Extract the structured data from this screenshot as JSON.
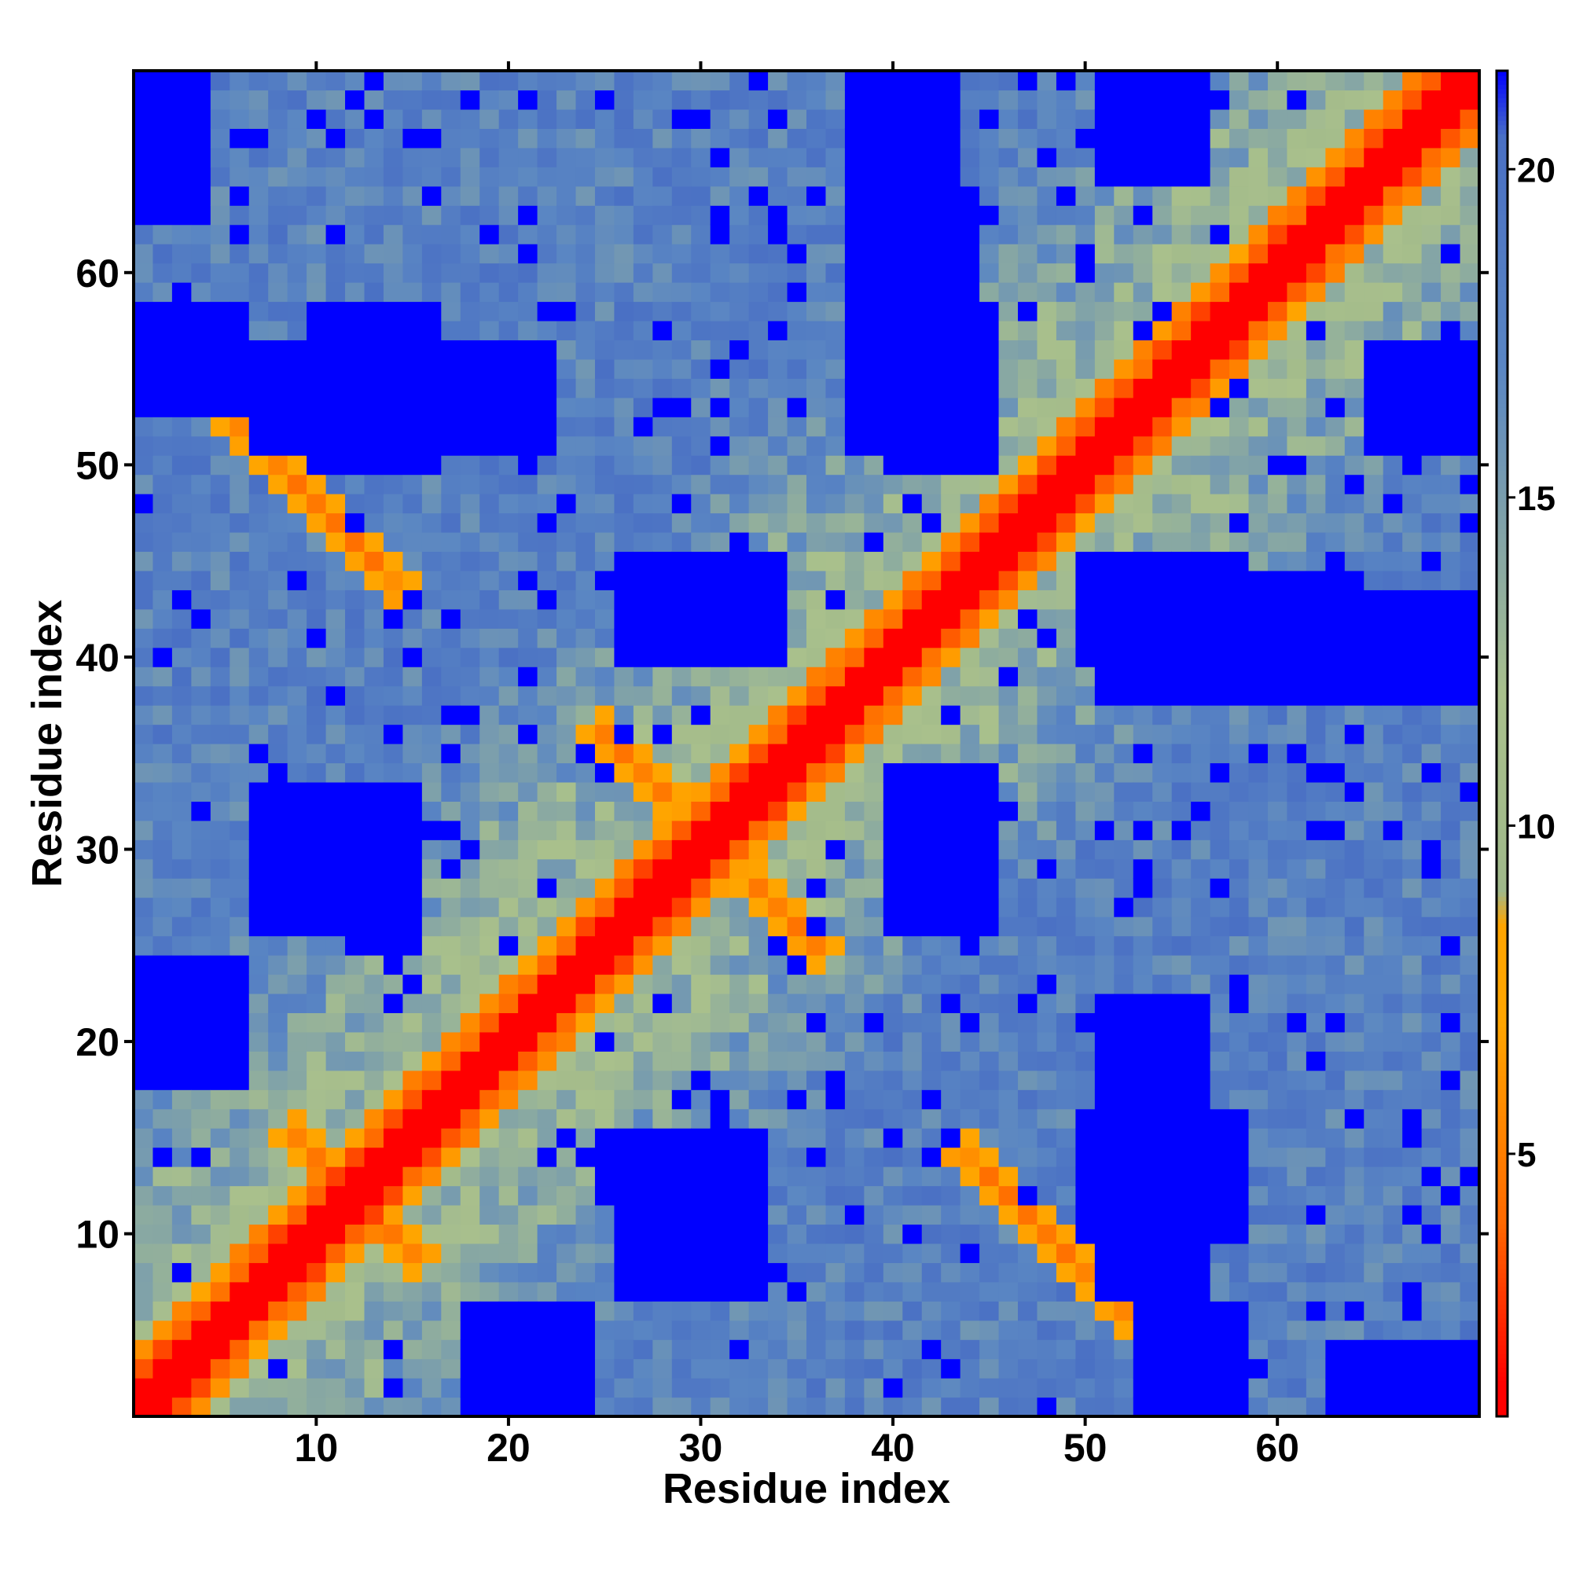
{
  "chart_data": {
    "type": "heatmap",
    "title": "",
    "xlabel": "Residue index",
    "ylabel": "Residue index",
    "n": 70,
    "xlim": [
      1,
      70
    ],
    "ylim": [
      1,
      70
    ],
    "x_ticks": [
      10,
      20,
      30,
      40,
      50,
      60
    ],
    "y_ticks": [
      10,
      20,
      30,
      40,
      50,
      60
    ],
    "colorbar": {
      "ticks": [
        5,
        10,
        15,
        20
      ],
      "range": [
        1,
        21.5
      ],
      "stops": [
        {
          "value": 1.5,
          "color": "#ff0000"
        },
        {
          "value": 4,
          "color": "#ff6a00"
        },
        {
          "value": 7,
          "color": "#ffa500"
        },
        {
          "value": 8.5,
          "color": "#ffa500"
        },
        {
          "value": 9,
          "color": "#9fb88a"
        },
        {
          "value": 12,
          "color": "#a9c08c"
        },
        {
          "value": 17,
          "color": "#5a86c3"
        },
        {
          "value": 20.5,
          "color": "#4a70c4"
        },
        {
          "value": 21.5,
          "color": "#0000ff"
        }
      ]
    },
    "values_description": "Pairwise distance map: symmetric, zero-distance (red) diagonal with orange near-contact bands; blue = distances >= 21.",
    "contact_bands": [
      {
        "i_start": 5,
        "j_start": 53,
        "length": 10,
        "orientation": "anti"
      },
      {
        "i_start": 25,
        "j_start": 36,
        "length": 10,
        "orientation": "anti"
      },
      {
        "i_start": 9,
        "j_start": 15,
        "length": 8,
        "orientation": "anti"
      }
    ],
    "far_blocks": [
      {
        "i": [
          1,
          6
        ],
        "j": [
          18,
          24
        ]
      },
      {
        "i": [
          1,
          6
        ],
        "j": [
          53,
          58
        ]
      },
      {
        "i": [
          10,
          16
        ],
        "j": [
          50,
          58
        ]
      },
      {
        "i": [
          18,
          23
        ],
        "j": [
          1,
          5
        ]
      },
      {
        "i": [
          12,
          15
        ],
        "j": [
          25,
          33
        ]
      },
      {
        "i": [
          28,
          33
        ],
        "j": [
          40,
          44
        ]
      },
      {
        "i": [
          40,
          45
        ],
        "j": [
          26,
          34
        ]
      },
      {
        "i": [
          40,
          45
        ],
        "j": [
          50,
          56
        ]
      },
      {
        "i": [
          51,
          56
        ],
        "j": [
          7,
          22
        ]
      },
      {
        "i": [
          51,
          58
        ],
        "j": [
          38,
          45
        ]
      },
      {
        "i": [
          63,
          70
        ],
        "j": [
          1,
          4
        ]
      },
      {
        "i": [
          64,
          70
        ],
        "j": [
          38,
          43
        ]
      },
      {
        "i": [
          65,
          70
        ],
        "j": [
          51,
          56
        ]
      },
      {
        "i": [
          26,
          33
        ],
        "j": [
          7,
          11
        ]
      },
      {
        "i": [
          38,
          44
        ],
        "j": [
          51,
          64
        ]
      }
    ]
  }
}
